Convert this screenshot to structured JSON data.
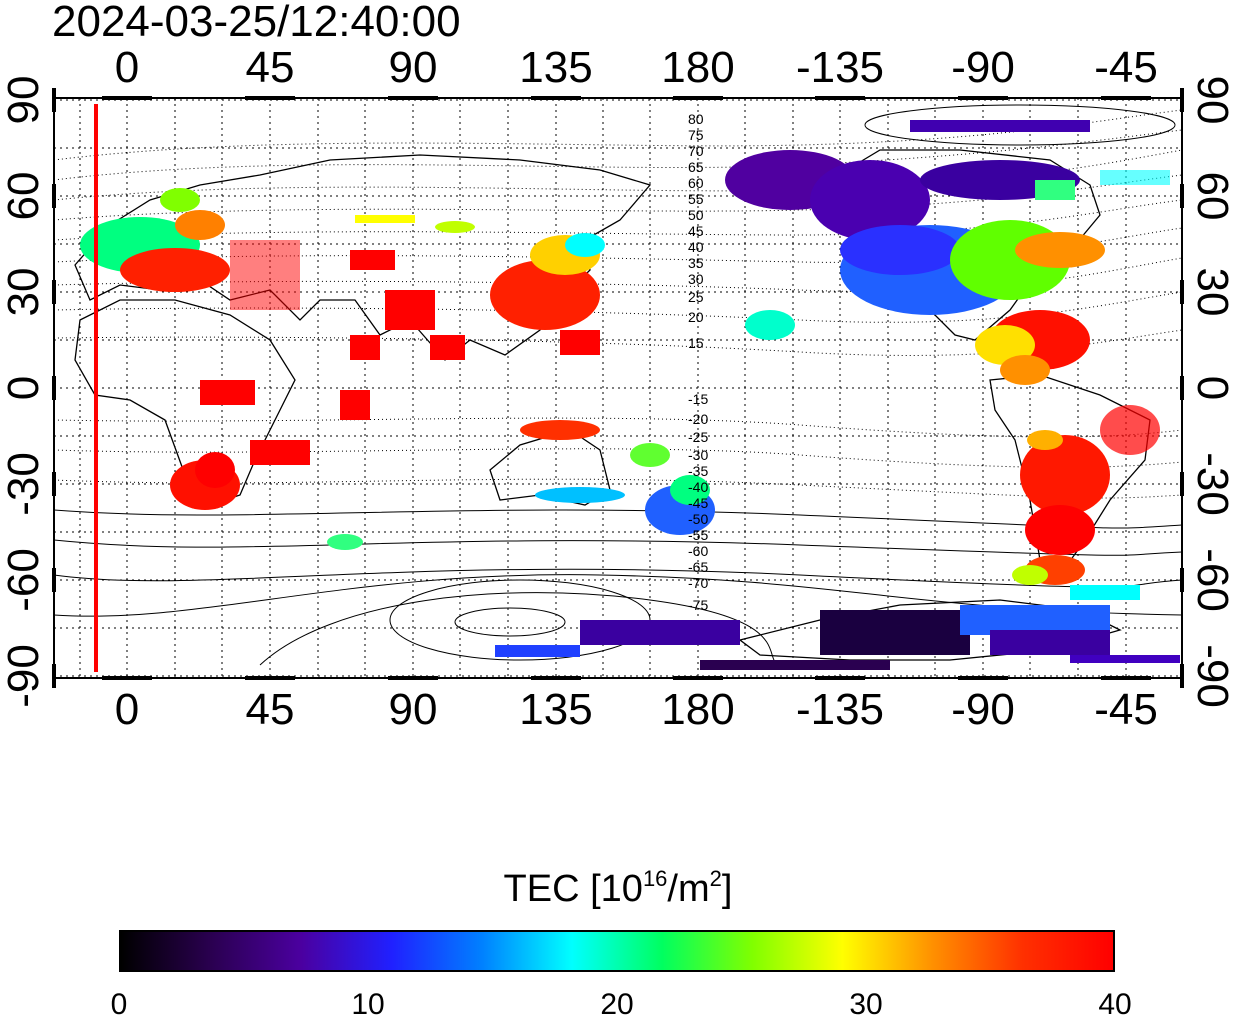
{
  "title": "2024-03-25/12:40:00",
  "map": {
    "lon_ticks_top": [
      "0",
      "45",
      "90",
      "135",
      "180",
      "-135",
      "-90",
      "-45"
    ],
    "lon_ticks_bottom": [
      "0",
      "45",
      "90",
      "135",
      "180",
      "-135",
      "-90",
      "-45"
    ],
    "lat_ticks_left": [
      "90",
      "60",
      "30",
      "0",
      "-30",
      "-60",
      "-90"
    ],
    "lat_ticks_right": [
      "90",
      "60",
      "30",
      "0",
      "-30",
      "-60",
      "-90"
    ],
    "contour_labels_north": [
      "80",
      "75",
      "70",
      "65",
      "60",
      "55",
      "50",
      "45",
      "40",
      "35",
      "30",
      "25",
      "20",
      "15"
    ],
    "contour_labels_south": [
      "-15",
      "-20",
      "-25",
      "-30",
      "-35",
      "-40",
      "-45",
      "-50",
      "-55",
      "-60",
      "-65",
      "-70",
      "-75"
    ],
    "marker_color": "#ff0000"
  },
  "colorbar": {
    "title_prefix": "TEC  [10",
    "title_exp": "16",
    "title_mid": "/m",
    "title_exp2": "2",
    "title_suffix": "]",
    "ticks": [
      "0",
      "10",
      "20",
      "30",
      "40"
    ],
    "stops": [
      "#000000",
      "#2a0050",
      "#4b00a0",
      "#2020ff",
      "#0080ff",
      "#00ffff",
      "#00ff60",
      "#80ff00",
      "#ffff00",
      "#ff9000",
      "#ff3000",
      "#ff0000"
    ]
  }
}
